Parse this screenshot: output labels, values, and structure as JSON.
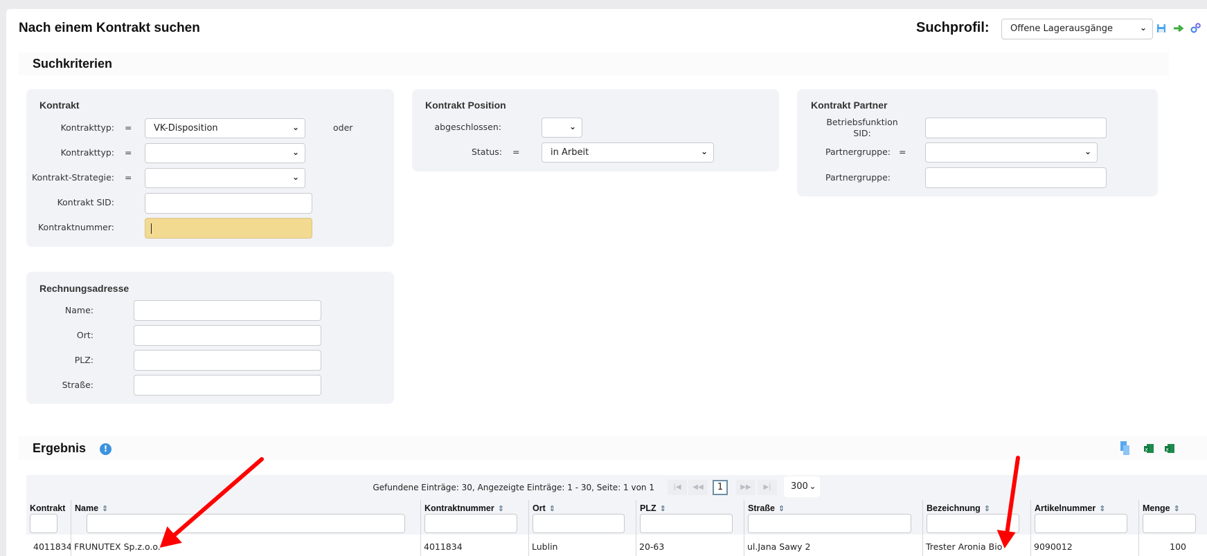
{
  "header": {
    "title": "Nach einem Kontrakt suchen",
    "profile_label": "Suchprofil:",
    "profile_value": "Offene Lagerausgänge",
    "icons": [
      "save-icon",
      "arrow-right-icon",
      "settings-gears-icon"
    ]
  },
  "criteria": {
    "title": "Suchkriterien",
    "kontrakt": {
      "title": "Kontrakt",
      "type_label": "Kontrakttyp:",
      "type_value": "VK-Disposition",
      "oder": "oder",
      "type2_label": "Kontrakttyp:",
      "type2_value": "",
      "strategy_label": "Kontrakt-Strategie:",
      "strategy_value": "",
      "sid_label": "Kontrakt SID:",
      "number_label": "Kontraktnummer:",
      "eq": "="
    },
    "position": {
      "title": "Kontrakt Position",
      "closed_label": "abgeschlossen:",
      "closed_value": "",
      "status_label": "Status:",
      "status_value": "in Arbeit",
      "eq": "="
    },
    "partner": {
      "title": "Kontrakt Partner",
      "func_label_1": "Betriebsfunktion",
      "func_label_2": "SID:",
      "group_label": "Partnergruppe:",
      "group2_label": "Partnergruppe:",
      "eq": "="
    },
    "address": {
      "title": "Rechnungsadresse",
      "name_label": "Name:",
      "ort_label": "Ort:",
      "plz_label": "PLZ:",
      "street_label": "Straße:"
    }
  },
  "result": {
    "title": "Ergebnis",
    "info_icon": "info-icon",
    "export_icons": [
      "copy-icon",
      "excel-icon",
      "excel-icon"
    ],
    "pagination": {
      "summary": "Gefundene Einträge: 30, Angezeigte Einträge: 1 - 30, Seite: 1 von 1",
      "first": "|◀",
      "prev": "◀◀",
      "page": "1",
      "next": "▶▶",
      "last": "▶|",
      "page_size": "300"
    },
    "columns": [
      "Kontrakt",
      "Name",
      "Kontraktnummer",
      "Ort",
      "PLZ",
      "Straße",
      "Bezeichnung",
      "Artikelnummer",
      "Menge"
    ],
    "rows": [
      [
        "4011834",
        "FRUNUTEX Sp.z.o.o.",
        "4011834",
        "Lublin",
        "20-63",
        "ul.Jana Sawy 2",
        "Trester Aronia Bio",
        "9090012",
        "100"
      ]
    ]
  },
  "colors": {
    "highlight_input": "#f3da91",
    "annotation_arrow": "#ff0000",
    "info": "#3b93dd"
  }
}
